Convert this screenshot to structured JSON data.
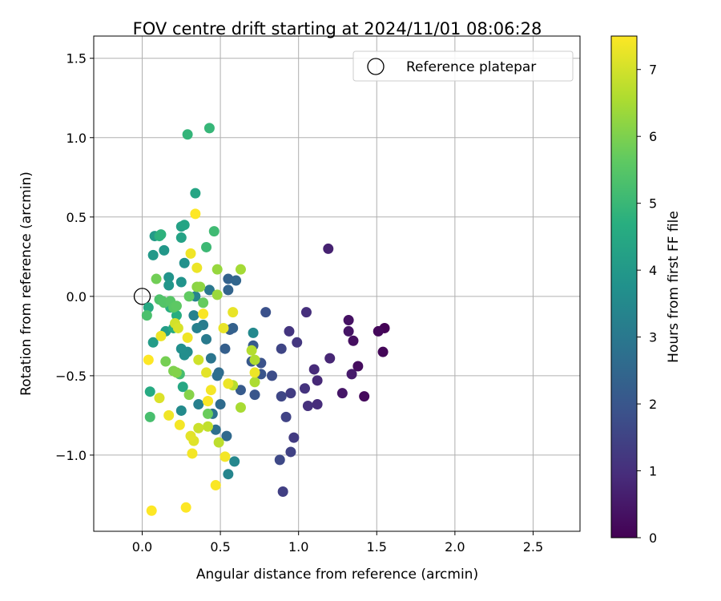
{
  "chart_data": {
    "type": "scatter",
    "title": "FOV centre drift starting at 2024/11/01 08:06:28",
    "xlabel": "Angular distance from reference (arcmin)",
    "ylabel": "Rotation from reference (arcmin)",
    "xlim": [
      -0.31,
      2.8
    ],
    "ylim": [
      -1.48,
      1.64
    ],
    "xticks": [
      0.0,
      0.5,
      1.0,
      1.5,
      2.0,
      2.5
    ],
    "xtick_labels": [
      "0.0",
      "0.5",
      "1.0",
      "1.5",
      "2.0",
      "2.5"
    ],
    "yticks": [
      -1.0,
      -0.5,
      0.0,
      0.5,
      1.0,
      1.5
    ],
    "ytick_labels": [
      "−1.0",
      "−0.5",
      "0.0",
      "0.5",
      "1.0",
      "1.5"
    ],
    "grid": true,
    "legend": {
      "position": "top-right",
      "entries": [
        {
          "label": "Reference platepar",
          "marker": "open-circle"
        }
      ]
    },
    "reference_point": {
      "x": 0.0,
      "y": 0.0
    },
    "colorbar": {
      "label": "Hours from first FF file",
      "colormap": "viridis",
      "range": [
        0,
        7.5
      ],
      "ticks": [
        0,
        1,
        2,
        3,
        4,
        5,
        6,
        7
      ],
      "tick_labels": [
        "0",
        "1",
        "2",
        "3",
        "4",
        "5",
        "6",
        "7"
      ]
    },
    "points": [
      [
        1.55,
        -0.2,
        0.05
      ],
      [
        1.54,
        -0.35,
        0.1
      ],
      [
        1.51,
        -0.22,
        0.15
      ],
      [
        1.42,
        -0.63,
        0.2
      ],
      [
        1.38,
        -0.44,
        0.25
      ],
      [
        1.35,
        -0.28,
        0.3
      ],
      [
        1.32,
        -0.15,
        0.35
      ],
      [
        1.32,
        -0.22,
        0.4
      ],
      [
        1.28,
        -0.61,
        0.45
      ],
      [
        1.34,
        -0.49,
        0.55
      ],
      [
        1.19,
        0.3,
        0.7
      ],
      [
        1.2,
        -0.39,
        0.8
      ],
      [
        1.12,
        -0.53,
        0.85
      ],
      [
        1.1,
        -0.46,
        0.9
      ],
      [
        1.12,
        -0.68,
        0.95
      ],
      [
        1.05,
        -0.1,
        1.0
      ],
      [
        1.06,
        -0.69,
        1.05
      ],
      [
        1.04,
        -0.58,
        1.1
      ],
      [
        0.94,
        -0.22,
        1.15
      ],
      [
        0.99,
        -0.29,
        1.2
      ],
      [
        0.97,
        -0.89,
        1.3
      ],
      [
        0.95,
        -0.61,
        1.35
      ],
      [
        0.9,
        -1.23,
        1.4
      ],
      [
        0.95,
        -0.98,
        1.45
      ],
      [
        0.92,
        -0.76,
        1.5
      ],
      [
        0.89,
        -0.33,
        1.55
      ],
      [
        0.89,
        -0.63,
        1.6
      ],
      [
        0.88,
        -1.03,
        1.65
      ],
      [
        0.83,
        -0.5,
        1.75
      ],
      [
        0.79,
        -0.1,
        1.85
      ],
      [
        0.76,
        -0.42,
        1.9
      ],
      [
        0.76,
        -0.49,
        1.95
      ],
      [
        0.72,
        -0.62,
        2.0
      ],
      [
        0.7,
        -0.41,
        2.05
      ],
      [
        0.71,
        -0.31,
        2.1
      ],
      [
        0.63,
        -0.59,
        2.15
      ],
      [
        0.56,
        -0.21,
        2.2
      ],
      [
        0.53,
        -0.33,
        2.25
      ],
      [
        0.58,
        -0.2,
        2.3
      ],
      [
        0.55,
        0.11,
        2.35
      ],
      [
        0.55,
        0.04,
        2.4
      ],
      [
        0.6,
        0.1,
        2.45
      ],
      [
        0.54,
        -0.88,
        2.55
      ],
      [
        0.5,
        -0.68,
        2.6
      ],
      [
        0.49,
        -0.48,
        2.65
      ],
      [
        0.48,
        -0.5,
        2.7
      ],
      [
        0.47,
        -0.84,
        2.75
      ],
      [
        0.45,
        -0.74,
        2.8
      ],
      [
        0.44,
        -0.39,
        2.9
      ],
      [
        0.43,
        0.04,
        3.0
      ],
      [
        0.41,
        -0.27,
        3.05
      ],
      [
        0.39,
        -0.18,
        3.1
      ],
      [
        0.36,
        -0.68,
        3.2
      ],
      [
        0.35,
        -0.2,
        3.25
      ],
      [
        0.33,
        -0.12,
        3.3
      ],
      [
        0.34,
        0.0,
        3.35
      ],
      [
        0.55,
        -1.12,
        3.4
      ],
      [
        0.59,
        -1.04,
        3.45
      ],
      [
        0.71,
        -0.23,
        3.5
      ],
      [
        0.25,
        -0.72,
        3.55
      ],
      [
        0.29,
        -0.35,
        3.6
      ],
      [
        0.27,
        -0.37,
        3.65
      ],
      [
        0.25,
        -0.33,
        3.7
      ],
      [
        0.27,
        0.21,
        3.75
      ],
      [
        0.25,
        0.09,
        3.8
      ],
      [
        0.17,
        0.12,
        3.85
      ],
      [
        0.17,
        0.07,
        3.9
      ],
      [
        0.14,
        0.29,
        3.95
      ],
      [
        0.07,
        0.26,
        4.0
      ],
      [
        0.08,
        0.38,
        4.05
      ],
      [
        0.07,
        -0.29,
        4.1
      ],
      [
        0.15,
        -0.22,
        4.15
      ],
      [
        0.25,
        0.44,
        4.25
      ],
      [
        0.25,
        0.37,
        4.3
      ],
      [
        0.27,
        0.45,
        4.35
      ],
      [
        0.34,
        0.65,
        4.4
      ],
      [
        0.26,
        -0.57,
        4.45
      ],
      [
        0.04,
        -0.07,
        4.5
      ],
      [
        0.05,
        -0.6,
        4.55
      ],
      [
        0.2,
        -0.2,
        4.6
      ],
      [
        0.22,
        -0.12,
        4.65
      ],
      [
        0.18,
        -0.07,
        4.7
      ],
      [
        0.11,
        0.38,
        4.75
      ],
      [
        0.12,
        0.39,
        4.8
      ],
      [
        0.29,
        1.02,
        4.9
      ],
      [
        0.43,
        1.06,
        4.95
      ],
      [
        0.46,
        0.41,
        5.1
      ],
      [
        0.41,
        0.31,
        5.05
      ],
      [
        0.24,
        -0.49,
        5.2
      ],
      [
        0.05,
        -0.76,
        5.25
      ],
      [
        0.03,
        -0.12,
        5.3
      ],
      [
        0.11,
        -0.02,
        5.35
      ],
      [
        0.13,
        -0.03,
        5.4
      ],
      [
        0.14,
        -0.04,
        5.45
      ],
      [
        0.18,
        -0.03,
        5.5
      ],
      [
        0.2,
        -0.07,
        5.55
      ],
      [
        0.22,
        -0.06,
        5.6
      ],
      [
        0.3,
        0.0,
        5.65
      ],
      [
        0.39,
        -0.04,
        5.7
      ],
      [
        0.42,
        -0.74,
        5.75
      ],
      [
        0.09,
        0.11,
        5.85
      ],
      [
        0.15,
        -0.41,
        5.9
      ],
      [
        0.2,
        -0.47,
        6.0
      ],
      [
        0.22,
        -0.48,
        6.05
      ],
      [
        0.3,
        -0.62,
        6.1
      ],
      [
        0.35,
        0.06,
        6.15
      ],
      [
        0.37,
        0.06,
        6.2
      ],
      [
        0.48,
        0.17,
        6.3
      ],
      [
        0.48,
        0.01,
        6.35
      ],
      [
        0.63,
        0.17,
        6.45
      ],
      [
        0.63,
        -0.7,
        6.5
      ],
      [
        0.72,
        -0.54,
        6.55
      ],
      [
        0.72,
        -0.4,
        6.6
      ],
      [
        0.7,
        -0.34,
        6.65
      ],
      [
        0.58,
        -0.56,
        6.7
      ],
      [
        0.49,
        -0.92,
        6.75
      ],
      [
        0.42,
        -0.82,
        6.8
      ],
      [
        0.42,
        -0.66,
        6.85
      ],
      [
        0.36,
        -0.83,
        6.9
      ],
      [
        0.36,
        -0.4,
        6.95
      ],
      [
        0.21,
        -0.17,
        7.0
      ],
      [
        0.23,
        -0.2,
        7.05
      ],
      [
        0.11,
        -0.64,
        7.1
      ],
      [
        0.33,
        -0.91,
        7.15
      ],
      [
        0.31,
        -0.88,
        7.2
      ],
      [
        0.41,
        -0.48,
        7.2
      ],
      [
        0.52,
        -0.2,
        7.25
      ],
      [
        0.58,
        -0.1,
        7.25
      ],
      [
        0.72,
        -0.48,
        7.3
      ],
      [
        0.55,
        -0.55,
        7.3
      ],
      [
        0.35,
        0.18,
        7.3
      ],
      [
        0.31,
        0.27,
        7.35
      ],
      [
        0.29,
        -0.26,
        7.35
      ],
      [
        0.12,
        -0.25,
        7.3
      ],
      [
        0.17,
        -0.75,
        7.35
      ],
      [
        0.24,
        -0.81,
        7.4
      ],
      [
        0.32,
        -0.99,
        7.4
      ],
      [
        0.53,
        -1.01,
        7.4
      ],
      [
        0.44,
        -0.59,
        7.4
      ],
      [
        0.42,
        -0.66,
        7.45
      ],
      [
        0.39,
        -0.11,
        7.45
      ],
      [
        0.47,
        -1.19,
        7.45
      ],
      [
        0.28,
        -1.33,
        7.5
      ],
      [
        0.34,
        0.52,
        7.5
      ],
      [
        0.04,
        -0.4,
        7.5
      ],
      [
        0.06,
        -1.35,
        7.5
      ]
    ]
  }
}
